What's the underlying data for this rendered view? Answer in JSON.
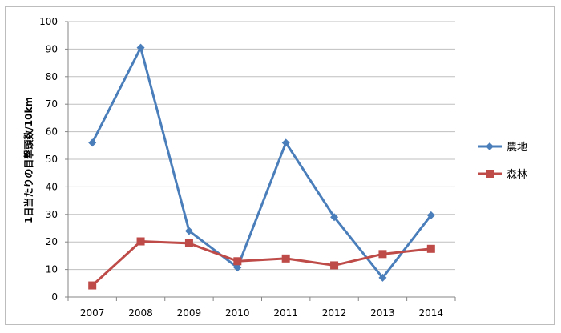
{
  "chart_data": {
    "type": "line",
    "title": "",
    "xlabel": "",
    "ylabel": "1日当たりの目撃頭数/10km",
    "categories": [
      "2007",
      "2008",
      "2009",
      "2010",
      "2011",
      "2012",
      "2013",
      "2014"
    ],
    "ylim": [
      0,
      100
    ],
    "yticks": [
      0,
      10,
      20,
      30,
      40,
      50,
      60,
      70,
      80,
      90,
      100
    ],
    "grid": true,
    "legend_position": "right",
    "series": [
      {
        "name": "農地",
        "color": "#4a7ebb",
        "marker": "diamond",
        "values": [
          56,
          90.5,
          24,
          10.7,
          56,
          29,
          7,
          29.7
        ]
      },
      {
        "name": "森林",
        "color": "#be4b48",
        "marker": "square",
        "values": [
          4.2,
          20.2,
          19.5,
          13,
          14,
          11.5,
          15.6,
          17.5
        ]
      }
    ]
  }
}
